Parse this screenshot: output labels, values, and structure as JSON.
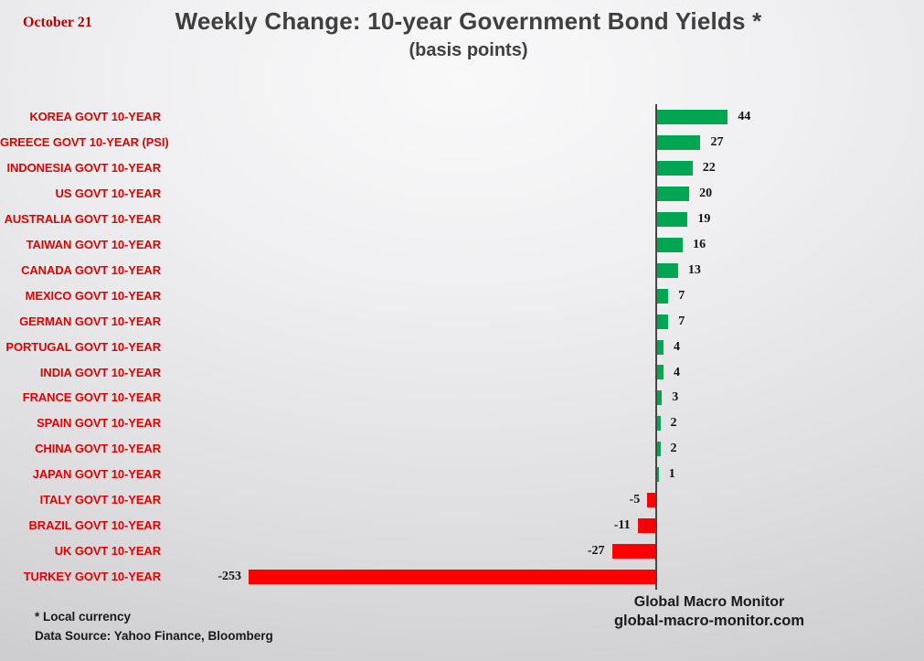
{
  "header": {
    "date": "October 21",
    "title": "Weekly Change: 10-year Government Bond Yields *",
    "subtitle": "(basis points)"
  },
  "chart_data": {
    "type": "bar",
    "orientation": "horizontal",
    "title": "Weekly Change: 10-year Government Bond Yields *",
    "subtitle": "(basis points)",
    "unit": "basis points",
    "categories": [
      "KOREA GOVT 10-YEAR",
      "GREECE GOVT 10-YEAR (PSI)",
      "INDONESIA GOVT 10-YEAR",
      "US GOVT 10-YEAR",
      "AUSTRALIA GOVT 10-YEAR",
      "TAIWAN GOVT 10-YEAR",
      "CANADA GOVT 10-YEAR",
      "MEXICO GOVT 10-YEAR",
      "GERMAN GOVT 10-YEAR",
      "PORTUGAL GOVT 10-YEAR",
      "INDIA GOVT 10-YEAR",
      "FRANCE GOVT 10-YEAR",
      "SPAIN GOVT 10-YEAR",
      "CHINA GOVT 10-YEAR",
      "JAPAN GOVT 10-YEAR",
      "ITALY GOVT 10-YEAR",
      "BRAZIL GOVT 10-YEAR",
      "UK GOVT 10-YEAR",
      "TURKEY GOVT 10-YEAR"
    ],
    "values": [
      44,
      27,
      22,
      20,
      19,
      16,
      13,
      7,
      7,
      4,
      4,
      3,
      2,
      2,
      1,
      -5,
      -11,
      -27,
      -253
    ],
    "xlim": [
      -260,
      60
    ],
    "grid": false,
    "legend": false,
    "colors": {
      "positive_bar": "#00A651",
      "negative_bar": "#FF0000",
      "category_label": "#E00000",
      "axis_line": "#474747"
    }
  },
  "footer": {
    "note1": "* Local currency",
    "note2": "Data Source:  Yahoo Finance, Bloomberg"
  },
  "branding": {
    "name": "Global Macro Monitor",
    "url": "global-macro-monitor.com"
  }
}
